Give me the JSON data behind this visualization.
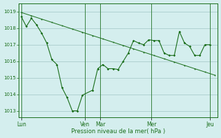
{
  "title": "",
  "xlabel": "Pression niveau de la mer( hPa )",
  "bg_color": "#d4eeee",
  "grid_color": "#aacccc",
  "line_color": "#1a6e1a",
  "yticks": [
    1013,
    1014,
    1015,
    1016,
    1017,
    1018,
    1019
  ],
  "ylim": [
    1012.6,
    1019.5
  ],
  "xlim": [
    -0.5,
    38.5
  ],
  "day_labels": [
    "Lun",
    "Ven",
    "Mar",
    "Mer",
    "Jeu"
  ],
  "day_positions": [
    0.0,
    12.5,
    15.5,
    25.5,
    37.0
  ],
  "vline_positions": [
    0.0,
    12.5,
    15.5,
    25.5,
    37.0
  ],
  "series1_x": [
    0,
    1,
    2,
    3,
    4,
    5,
    6,
    7,
    8,
    9,
    10,
    11,
    12,
    14,
    15,
    16,
    17,
    18,
    19,
    20,
    21,
    22,
    23,
    24,
    25,
    26,
    27,
    28,
    29,
    30,
    31,
    32,
    33,
    34,
    35,
    36,
    37
  ],
  "series1_y": [
    1018.7,
    1018.1,
    1018.6,
    1018.2,
    1017.7,
    1017.1,
    1016.1,
    1015.8,
    1014.4,
    1013.8,
    1013.0,
    1013.0,
    1013.95,
    1014.25,
    1015.55,
    1015.8,
    1015.55,
    1015.55,
    1015.5,
    1016.0,
    1016.5,
    1017.25,
    1017.1,
    1017.0,
    1017.3,
    1017.25,
    1017.25,
    1016.5,
    1016.35,
    1016.35,
    1017.8,
    1017.1,
    1016.9,
    1016.35,
    1016.35,
    1017.0,
    1017.0
  ],
  "series2_x": [
    0,
    2,
    4,
    6,
    8,
    10,
    12,
    14,
    16,
    18,
    20,
    22,
    24,
    26,
    28,
    30,
    32,
    34,
    36,
    38
  ],
  "series2_y": [
    1018.95,
    1018.75,
    1018.55,
    1018.35,
    1018.15,
    1017.95,
    1017.75,
    1017.55,
    1017.35,
    1017.15,
    1016.95,
    1016.75,
    1016.55,
    1016.35,
    1016.15,
    1015.95,
    1015.75,
    1015.55,
    1015.35,
    1015.15
  ],
  "tick_fontsize": 5,
  "xlabel_fontsize": 6,
  "linewidth1": 0.8,
  "linewidth2": 0.7,
  "marker_size1": 1.8,
  "marker_size2": 1.2
}
